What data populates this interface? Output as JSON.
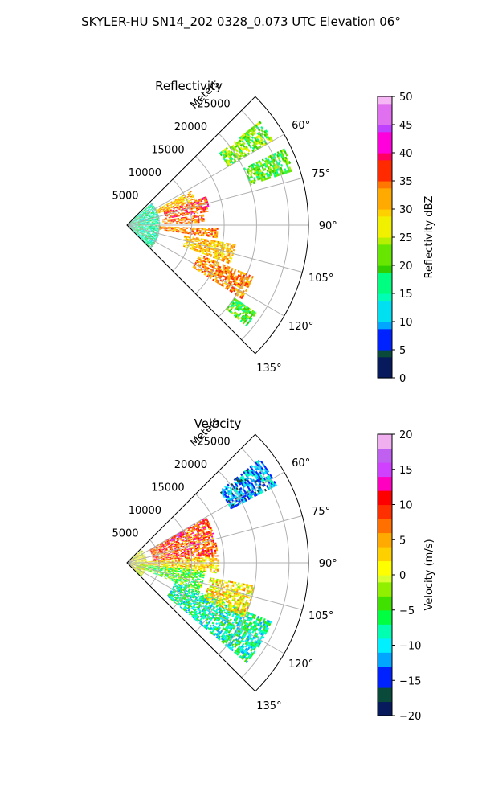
{
  "figure": {
    "suptitle": "SKYLER-HU  SN14_202  0328_0.073 UTC Elevation 06°"
  },
  "chart_data": [
    {
      "type": "heatmap",
      "projection": "polar-sector",
      "title": "Reflectivity",
      "radial_axis_label": "Meters",
      "radial_ticks": [
        5000,
        10000,
        15000,
        20000,
        25000
      ],
      "radial_tick_labels": [
        "5000",
        "10000",
        "15000",
        "20000",
        "25000"
      ],
      "rmax": 28000,
      "azimuth_ticks_deg": [
        60,
        75,
        90,
        105,
        120,
        135
      ],
      "azimuth_tick_labels": [
        "60°",
        "75°",
        "90°",
        "105°",
        "120°",
        "135°"
      ],
      "azimuth_range_deg": [
        45,
        135
      ],
      "grid": true,
      "colorbar": {
        "label": "Reflectivity dBZ",
        "range": [
          0,
          50
        ],
        "ticks": [
          0,
          5,
          10,
          15,
          20,
          25,
          30,
          35,
          40,
          45,
          50
        ],
        "tick_labels": [
          "0",
          "5",
          "10",
          "15",
          "20",
          "25",
          "30",
          "35",
          "40",
          "45",
          "50"
        ],
        "colormap": [
          [
            0,
            "#061a5c"
          ],
          [
            3,
            "#0a4a3a"
          ],
          [
            5,
            "#0022ff"
          ],
          [
            8,
            "#00a6ff"
          ],
          [
            10,
            "#00e0f0"
          ],
          [
            13,
            "#00ffb4"
          ],
          [
            15,
            "#00ff80"
          ],
          [
            18,
            "#30d000"
          ],
          [
            20,
            "#66e600"
          ],
          [
            23,
            "#b4f000"
          ],
          [
            25,
            "#f0f000"
          ],
          [
            28,
            "#ffd000"
          ],
          [
            30,
            "#ffaa00"
          ],
          [
            33,
            "#ff7700"
          ],
          [
            35,
            "#ff2a00"
          ],
          [
            38,
            "#ff0060"
          ],
          [
            40,
            "#ff00dc"
          ],
          [
            43,
            "#c040ff"
          ],
          [
            45,
            "#e070f0"
          ],
          [
            48,
            "#f5b8f5"
          ],
          [
            50,
            "#fff0ff"
          ]
        ]
      },
      "echo_regions": [
        {
          "az": [
            48,
            134
          ],
          "r": [
            0,
            5000
          ],
          "value": 15
        },
        {
          "az": [
            62,
            70
          ],
          "r": [
            5000,
            11000
          ],
          "value": 30
        },
        {
          "az": [
            70,
            80
          ],
          "r": [
            6000,
            13000
          ],
          "value": 36
        },
        {
          "az": [
            82,
            88
          ],
          "r": [
            5500,
            12000
          ],
          "value": 34
        },
        {
          "az": [
            92,
            98
          ],
          "r": [
            5000,
            14000
          ],
          "value": 33
        },
        {
          "az": [
            100,
            110
          ],
          "r": [
            9000,
            17000
          ],
          "value": 30
        },
        {
          "az": [
            112,
            122
          ],
          "r": [
            12000,
            21000
          ],
          "value": 33
        },
        {
          "az": [
            124,
            130
          ],
          "r": [
            20000,
            24000
          ],
          "value": 20
        },
        {
          "az": [
            52,
            60
          ],
          "r": [
            18000,
            26000
          ],
          "value": 22
        },
        {
          "az": [
            64,
            72
          ],
          "r": [
            20000,
            27000
          ],
          "value": 20
        }
      ]
    },
    {
      "type": "heatmap",
      "projection": "polar-sector",
      "title": "Velocity",
      "radial_axis_label": "Meters",
      "radial_ticks": [
        5000,
        10000,
        15000,
        20000,
        25000
      ],
      "radial_tick_labels": [
        "5000",
        "10000",
        "15000",
        "20000",
        "25000"
      ],
      "rmax": 28000,
      "azimuth_ticks_deg": [
        60,
        75,
        90,
        105,
        120,
        135
      ],
      "azimuth_tick_labels": [
        "60°",
        "75°",
        "90°",
        "105°",
        "120°",
        "135°"
      ],
      "azimuth_range_deg": [
        45,
        135
      ],
      "grid": true,
      "colorbar": {
        "label": "Velocity (m/s)",
        "range": [
          -20,
          20
        ],
        "ticks": [
          -20,
          -15,
          -10,
          -5,
          0,
          5,
          10,
          15,
          20
        ],
        "tick_labels": [
          "−20",
          "−15",
          "−10",
          "−5",
          "0",
          "5",
          "10",
          "15",
          "20"
        ],
        "colormap": [
          [
            -20,
            "#061a5c"
          ],
          [
            -18,
            "#0a4a3a"
          ],
          [
            -16,
            "#0022ff"
          ],
          [
            -13,
            "#00a6ff"
          ],
          [
            -11,
            "#00f0ff"
          ],
          [
            -9,
            "#00ffb0"
          ],
          [
            -7,
            "#00ff40"
          ],
          [
            -5,
            "#40e000"
          ],
          [
            -3,
            "#90f000"
          ],
          [
            -1,
            "#d8ff30"
          ],
          [
            0,
            "#ffff00"
          ],
          [
            2,
            "#ffd000"
          ],
          [
            4,
            "#ffaa00"
          ],
          [
            6,
            "#ff7000"
          ],
          [
            8,
            "#ff3000"
          ],
          [
            10,
            "#ff0000"
          ],
          [
            12,
            "#ff00c0"
          ],
          [
            14,
            "#d040ff"
          ],
          [
            16,
            "#c060f0"
          ],
          [
            18,
            "#f0b0f0"
          ],
          [
            20,
            "#fff0ff"
          ]
        ]
      },
      "echo_regions": [
        {
          "az": [
            60,
            86
          ],
          "r": [
            4000,
            14000
          ],
          "value": 8
        },
        {
          "az": [
            60,
            64
          ],
          "r": [
            7000,
            10000
          ],
          "value": 12
        },
        {
          "az": [
            86,
            96
          ],
          "r": [
            3000,
            14000
          ],
          "value": 3
        },
        {
          "az": [
            96,
            112
          ],
          "r": [
            2000,
            12000
          ],
          "value": -4
        },
        {
          "az": [
            112,
            130
          ],
          "r": [
            8000,
            24000
          ],
          "value": -8
        },
        {
          "az": [
            100,
            115
          ],
          "r": [
            13000,
            20000
          ],
          "value": 2
        },
        {
          "az": [
            52,
            62
          ],
          "r": [
            18000,
            26000
          ],
          "value": -12
        },
        {
          "az": [
            48,
            134
          ],
          "r": [
            0,
            3000
          ],
          "value": 1
        }
      ]
    }
  ]
}
